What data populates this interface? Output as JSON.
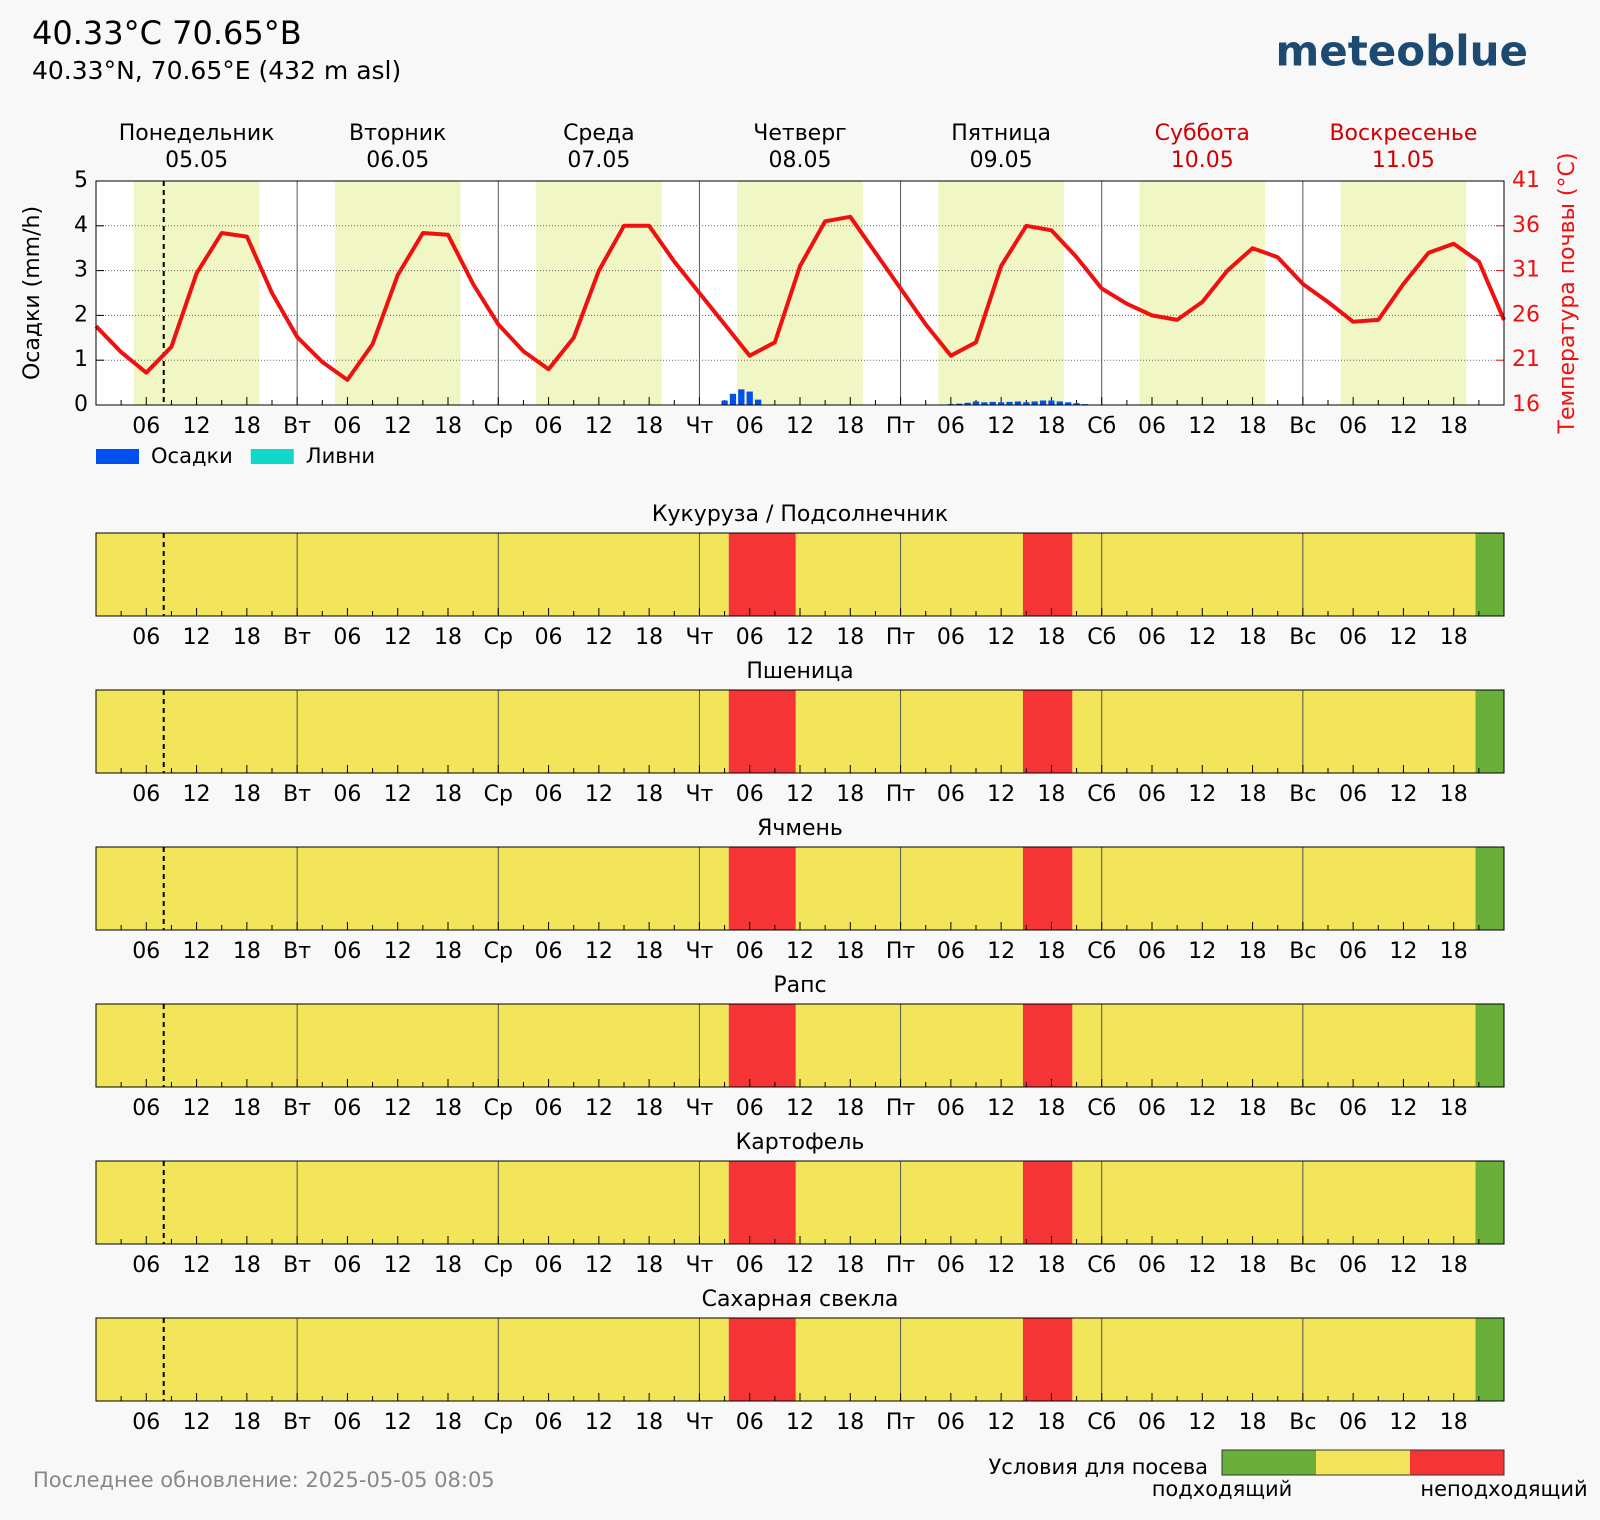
{
  "header": {
    "title": "40.33°C 70.65°В",
    "subtitle": "40.33°N, 70.65°E (432 m asl)",
    "logo": "meteoblue"
  },
  "chart_data": {
    "type": "meteogram",
    "days": [
      {
        "name": "Понедельник",
        "date": "05.05",
        "start": 0,
        "color": "#000000"
      },
      {
        "name": "Вторник",
        "date": "06.05",
        "start": 24,
        "color": "#000000"
      },
      {
        "name": "Среда",
        "date": "07.05",
        "start": 48,
        "color": "#000000"
      },
      {
        "name": "Четверг",
        "date": "08.05",
        "start": 72,
        "color": "#000000"
      },
      {
        "name": "Пятница",
        "date": "09.05",
        "start": 96,
        "color": "#000000"
      },
      {
        "name": "Суббота",
        "date": "10.05",
        "start": 120,
        "color": "#d00000"
      },
      {
        "name": "Воскресенье",
        "date": "11.05",
        "start": 144,
        "color": "#d00000"
      }
    ],
    "xlim": [
      0,
      168
    ],
    "xticks": [
      {
        "value": 6,
        "label": "06"
      },
      {
        "value": 12,
        "label": "12"
      },
      18,
      {
        "value": 24,
        "label": "Вт"
      },
      {
        "value": 30,
        "label": "06"
      },
      {
        "value": 36,
        "label": "12"
      },
      {
        "value": 42,
        "label": "18"
      },
      {
        "value": 48,
        "label": "Ср"
      },
      {
        "value": 54,
        "label": "06"
      },
      {
        "value": 60,
        "label": "12"
      },
      {
        "value": 66,
        "label": "18"
      },
      {
        "value": 72,
        "label": "Чт"
      },
      {
        "value": 78,
        "label": "06"
      },
      {
        "value": 84,
        "label": "12"
      },
      {
        "value": 90,
        "label": "18"
      },
      {
        "value": 96,
        "label": "Пт"
      },
      {
        "value": 102,
        "label": "06"
      },
      {
        "value": 108,
        "label": "12"
      },
      {
        "value": 114,
        "label": "18"
      },
      {
        "value": 120,
        "label": "Сб"
      },
      {
        "value": 126,
        "label": "06"
      },
      {
        "value": 132,
        "label": "12"
      },
      {
        "value": 138,
        "label": "18"
      },
      {
        "value": 144,
        "label": "Вс"
      },
      {
        "value": 150,
        "label": "06"
      },
      {
        "value": 156,
        "label": "12"
      },
      {
        "value": 162,
        "label": "18"
      }
    ],
    "now": 8.08,
    "daylight": [
      [
        4.5,
        19.5
      ],
      [
        28.5,
        43.5
      ],
      [
        52.5,
        67.5
      ],
      [
        76.5,
        91.5
      ],
      [
        100.5,
        115.5
      ],
      [
        124.5,
        139.5
      ],
      [
        148.5,
        163.5
      ]
    ],
    "ylim": [
      0,
      5
    ],
    "yticks": [
      0,
      1,
      2,
      3,
      4,
      5
    ],
    "ylabel": "Осадки (mm/h)",
    "y2lim": [
      16,
      41
    ],
    "y2ticks": [
      16,
      21,
      26,
      31,
      36,
      41
    ],
    "y2label": "Температура почвы (°C)",
    "grid": true,
    "series": [
      {
        "name": "Осадки",
        "color": "#0050f0",
        "x": [
          75,
          76,
          77,
          78,
          79,
          102,
          103,
          104,
          105,
          106,
          107,
          108,
          109,
          110,
          111,
          112,
          113,
          114,
          115,
          116,
          117,
          118
        ],
        "values": [
          0.1,
          0.25,
          0.35,
          0.3,
          0.12,
          0.02,
          0.03,
          0.05,
          0.08,
          0.06,
          0.07,
          0.06,
          0.07,
          0.08,
          0.06,
          0.08,
          0.1,
          0.1,
          0.08,
          0.06,
          0.04,
          0.02
        ]
      },
      {
        "name": "Ливни",
        "color": "#10d8c8",
        "x": [],
        "values": []
      },
      {
        "color": "#f01010",
        "axis": "y2",
        "x": [
          0,
          3,
          6,
          9,
          12,
          15,
          18,
          21,
          24,
          27,
          30,
          33,
          36,
          39,
          42,
          45,
          48,
          51,
          54,
          57,
          60,
          63,
          66,
          69,
          72,
          75,
          78,
          81,
          84,
          87,
          90,
          93,
          96,
          99,
          102,
          105,
          108,
          111,
          114,
          117,
          120,
          123,
          126,
          129,
          132,
          135,
          138,
          141,
          144,
          147,
          150,
          153,
          156,
          159,
          162,
          165,
          168
        ],
        "values": [
          24.8,
          21.9,
          19.6,
          22.5,
          30.7,
          35.2,
          34.8,
          28.5,
          23.6,
          20.8,
          18.8,
          22.8,
          30.5,
          35.2,
          35.0,
          29.5,
          25.0,
          22.0,
          20.0,
          23.5,
          31.0,
          36.0,
          36.0,
          32.0,
          28.5,
          25.0,
          21.5,
          23.0,
          31.5,
          36.5,
          37.0,
          33.0,
          29.0,
          25.0,
          21.5,
          23.0,
          31.5,
          36.0,
          35.5,
          32.5,
          29.0,
          27.3,
          26.0,
          25.5,
          27.5,
          31.0,
          33.5,
          32.5,
          29.5,
          27.5,
          25.3,
          25.5,
          29.5,
          33.0,
          34.0,
          32.0,
          25.5
        ]
      }
    ]
  },
  "crops": {
    "panels": [
      {
        "title": "Кукуруза / Подсолнечник",
        "segments": [
          [
            0,
            75.5,
            1
          ],
          [
            75.5,
            83.5,
            2
          ],
          [
            83.5,
            110.6,
            1
          ],
          [
            110.6,
            116.5,
            2
          ],
          [
            116.5,
            164.6,
            1
          ],
          [
            164.6,
            168,
            0
          ]
        ]
      },
      {
        "title": "Пшеница",
        "segments": [
          [
            0,
            75.5,
            1
          ],
          [
            75.5,
            83.5,
            2
          ],
          [
            83.5,
            110.6,
            1
          ],
          [
            110.6,
            116.5,
            2
          ],
          [
            116.5,
            164.6,
            1
          ],
          [
            164.6,
            168,
            0
          ]
        ]
      },
      {
        "title": "Ячмень",
        "segments": [
          [
            0,
            75.5,
            1
          ],
          [
            75.5,
            83.5,
            2
          ],
          [
            83.5,
            110.6,
            1
          ],
          [
            110.6,
            116.5,
            2
          ],
          [
            116.5,
            164.6,
            1
          ],
          [
            164.6,
            168,
            0
          ]
        ]
      },
      {
        "title": "Рапс",
        "segments": [
          [
            0,
            75.5,
            1
          ],
          [
            75.5,
            83.5,
            2
          ],
          [
            83.5,
            110.6,
            1
          ],
          [
            110.6,
            116.5,
            2
          ],
          [
            116.5,
            164.6,
            1
          ],
          [
            164.6,
            168,
            0
          ]
        ]
      },
      {
        "title": "Картофель",
        "segments": [
          [
            0,
            75.5,
            1
          ],
          [
            75.5,
            83.5,
            2
          ],
          [
            83.5,
            110.6,
            1
          ],
          [
            110.6,
            116.5,
            2
          ],
          [
            116.5,
            164.6,
            1
          ],
          [
            164.6,
            168,
            0
          ]
        ]
      },
      {
        "title": "Сахарная свекла",
        "segments": [
          [
            0,
            75.5,
            1
          ],
          [
            75.5,
            83.5,
            2
          ],
          [
            83.5,
            110.6,
            1
          ],
          [
            110.6,
            116.5,
            2
          ],
          [
            116.5,
            164.6,
            1
          ],
          [
            164.6,
            168,
            0
          ]
        ]
      }
    ],
    "legend": {
      "title": "Условия для посева",
      "colors": [
        "#6aaf3a",
        "#f2e55a",
        "#f53535"
      ],
      "low": "подходящий",
      "high": "неподходящий"
    }
  },
  "footer": "Последнее обновление: 2025-05-05 08:05"
}
